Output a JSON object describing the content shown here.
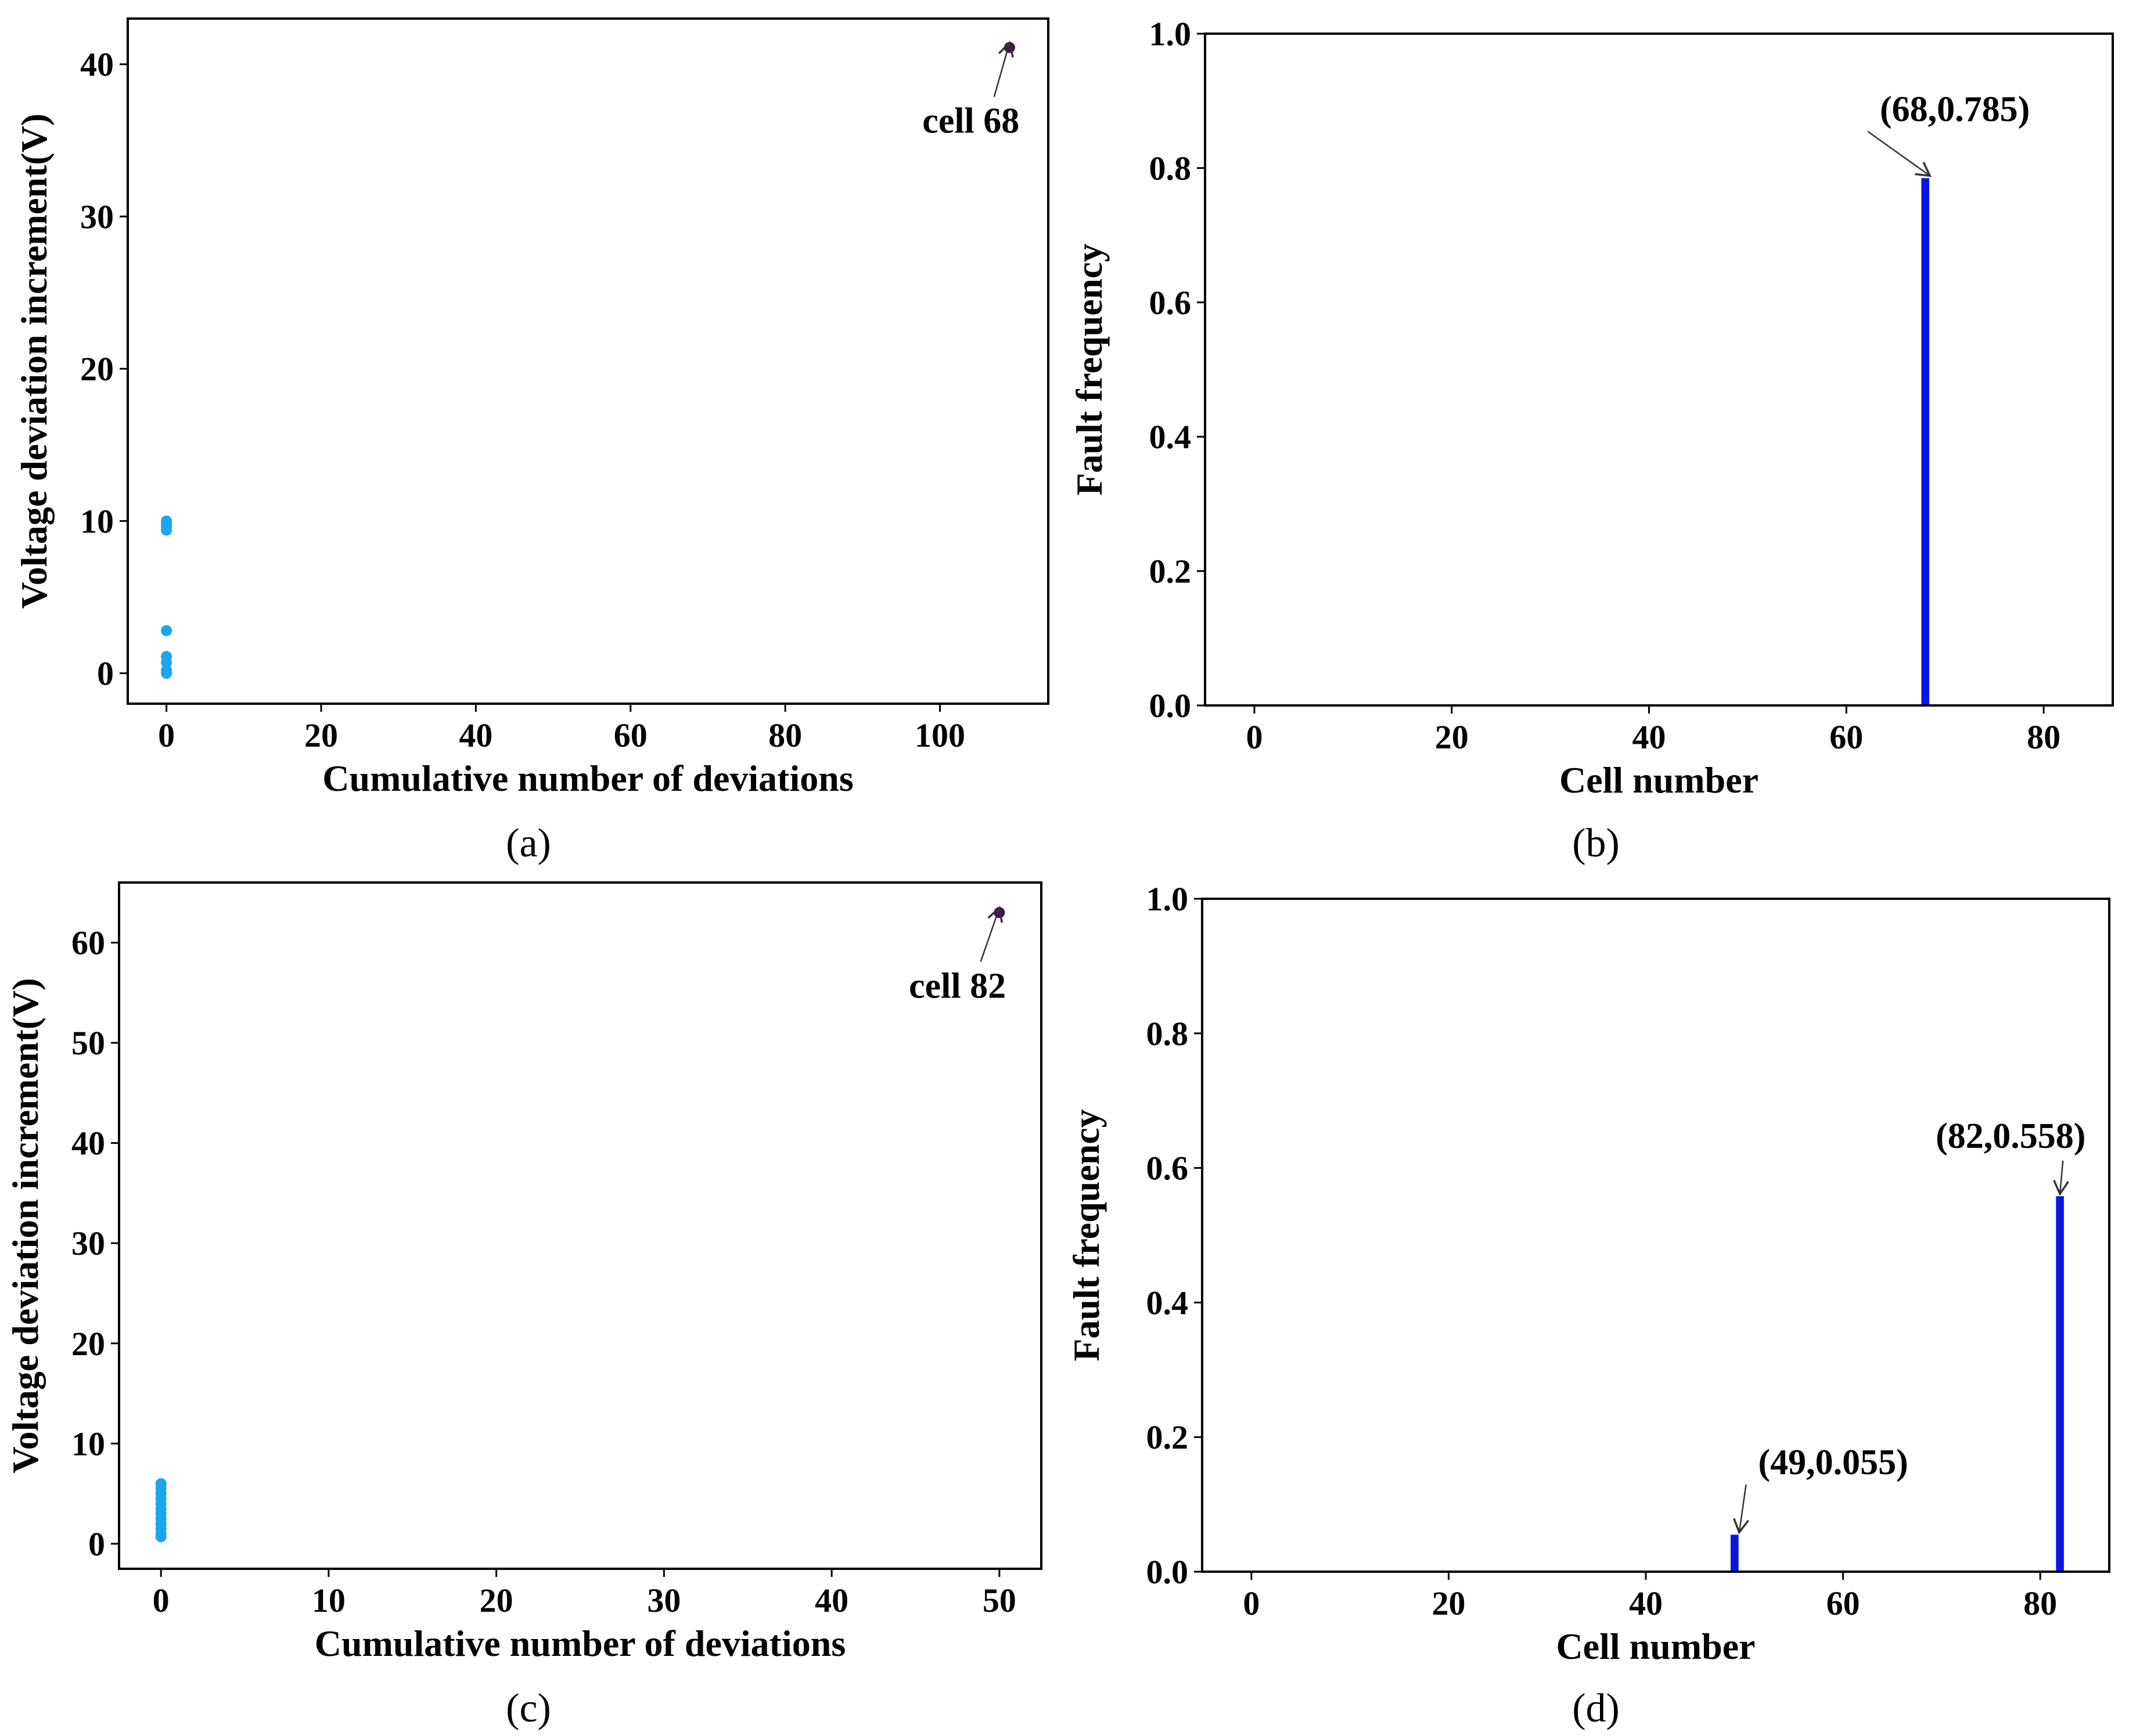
{
  "chart_data": [
    {
      "type": "scatter",
      "panel": "(a)",
      "xlabel": "Cumulative number of deviations",
      "ylabel": "Voltage deviation increment(V)",
      "xlim": [
        -5,
        114
      ],
      "ylim": [
        -2,
        43
      ],
      "xticks": [
        0,
        20,
        40,
        60,
        80,
        100
      ],
      "yticks": [
        0,
        10,
        20,
        30,
        40
      ],
      "grid": false,
      "points": [
        {
          "x": 0,
          "y": 10.0,
          "color": "#1aa7ec"
        },
        {
          "x": 0,
          "y": 9.8,
          "color": "#1aa7ec"
        },
        {
          "x": 0,
          "y": 9.6,
          "color": "#1aa7ec"
        },
        {
          "x": 0,
          "y": 9.4,
          "color": "#1aa7ec"
        },
        {
          "x": 0,
          "y": 2.8,
          "color": "#1aa7ec"
        },
        {
          "x": 0,
          "y": 1.1,
          "color": "#1aa7ec"
        },
        {
          "x": 0,
          "y": 0.7,
          "color": "#1aa7ec"
        },
        {
          "x": 0,
          "y": 0.2,
          "color": "#1aa7ec"
        },
        {
          "x": 0,
          "y": 0.0,
          "color": "#1aa7ec"
        },
        {
          "x": 109,
          "y": 41.1,
          "color": "#4b0a55"
        }
      ],
      "annotations": [
        {
          "text": "cell 68",
          "x": 109,
          "y": 41.1,
          "text_x": 104,
          "text_y": 35.5
        }
      ]
    },
    {
      "type": "bar",
      "panel": "(b)",
      "xlabel": "Cell number",
      "ylabel": "Fault frequency",
      "xlim": [
        -5,
        87
      ],
      "ylim": [
        0,
        1.0
      ],
      "xticks": [
        0,
        20,
        40,
        60,
        80
      ],
      "yticks": [
        0.0,
        0.2,
        0.4,
        0.6,
        0.8,
        1.0
      ],
      "grid": false,
      "bar_width": 0.8,
      "bar_color": "#0a16e8",
      "x": [
        68
      ],
      "values": [
        0.785
      ],
      "annotations": [
        {
          "text": "(68,0.785)",
          "x": 68,
          "y": 0.785,
          "text_x": 71,
          "text_y": 0.87
        }
      ]
    },
    {
      "type": "scatter",
      "panel": "(c)",
      "xlabel": "Cumulative number of deviations",
      "ylabel": "Voltage deviation increment(V)",
      "xlim": [
        -2.5,
        52.5
      ],
      "ylim": [
        -2.5,
        66
      ],
      "xticks": [
        0,
        10,
        20,
        30,
        40,
        50
      ],
      "yticks": [
        0,
        10,
        20,
        30,
        40,
        50,
        60
      ],
      "grid": false,
      "points": [
        {
          "x": 0,
          "y": 6.0,
          "color": "#1aa7ec"
        },
        {
          "x": 0,
          "y": 5.5,
          "color": "#1aa7ec"
        },
        {
          "x": 0,
          "y": 5.0,
          "color": "#1aa7ec"
        },
        {
          "x": 0,
          "y": 4.5,
          "color": "#1aa7ec"
        },
        {
          "x": 0,
          "y": 4.0,
          "color": "#1aa7ec"
        },
        {
          "x": 0,
          "y": 3.5,
          "color": "#1aa7ec"
        },
        {
          "x": 0,
          "y": 3.0,
          "color": "#1aa7ec"
        },
        {
          "x": 0,
          "y": 2.5,
          "color": "#1aa7ec"
        },
        {
          "x": 0,
          "y": 2.0,
          "color": "#1aa7ec"
        },
        {
          "x": 0,
          "y": 1.5,
          "color": "#1aa7ec"
        },
        {
          "x": 0,
          "y": 1.0,
          "color": "#1aa7ec"
        },
        {
          "x": 0,
          "y": 0.7,
          "color": "#1aa7ec"
        },
        {
          "x": 50,
          "y": 63.0,
          "color": "#4b0a55"
        }
      ],
      "annotations": [
        {
          "text": "cell 82",
          "x": 50,
          "y": 63.0,
          "text_x": 47.5,
          "text_y": 54.5
        }
      ]
    },
    {
      "type": "bar",
      "panel": "(d)",
      "xlabel": "Cell number",
      "ylabel": "Fault frequency",
      "xlim": [
        -5,
        87
      ],
      "ylim": [
        0,
        1.0
      ],
      "xticks": [
        0,
        20,
        40,
        60,
        80
      ],
      "yticks": [
        0.0,
        0.2,
        0.4,
        0.6,
        0.8,
        1.0
      ],
      "grid": false,
      "bar_width": 0.8,
      "bar_color": "#0a16e8",
      "x": [
        49,
        82
      ],
      "values": [
        0.055,
        0.558
      ],
      "annotations": [
        {
          "text": "(49,0.055)",
          "x": 49,
          "y": 0.055,
          "text_x": 59,
          "text_y": 0.145
        },
        {
          "text": "(82,0.558)",
          "x": 82,
          "y": 0.558,
          "text_x": 77,
          "text_y": 0.63
        }
      ]
    }
  ]
}
